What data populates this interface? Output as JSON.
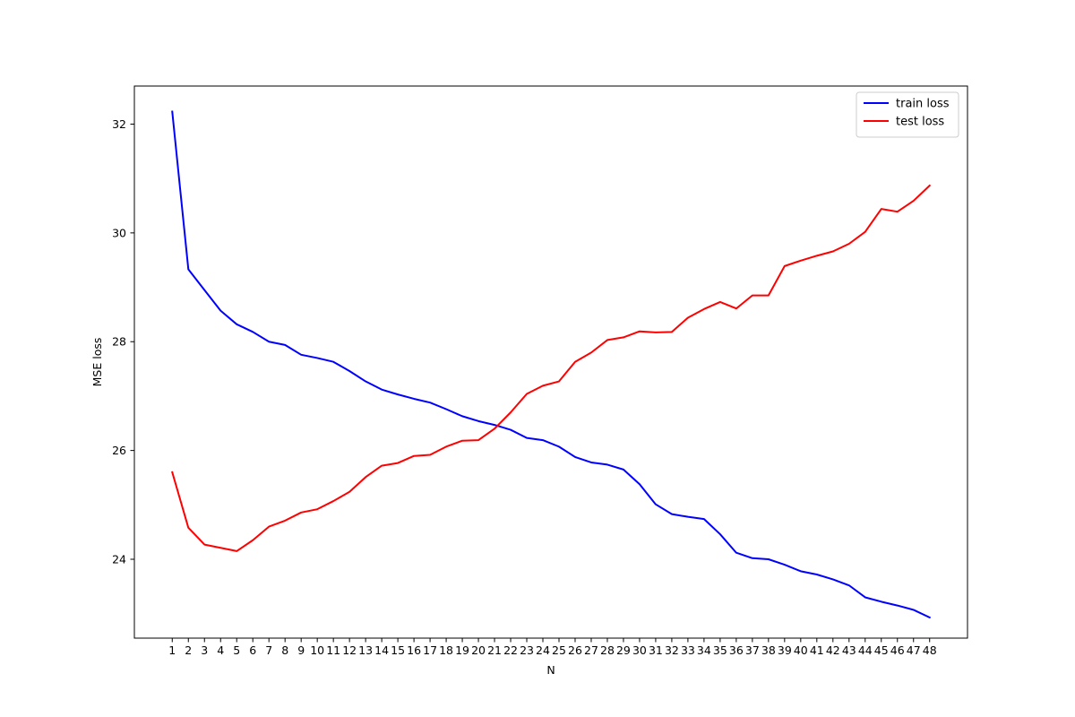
{
  "chart_data": {
    "type": "line",
    "title": "",
    "xlabel": "N",
    "ylabel": "MSE loss",
    "x": [
      1,
      2,
      3,
      4,
      5,
      6,
      7,
      8,
      9,
      10,
      11,
      12,
      13,
      14,
      15,
      16,
      17,
      18,
      19,
      20,
      21,
      22,
      23,
      24,
      25,
      26,
      27,
      28,
      29,
      30,
      31,
      32,
      33,
      34,
      35,
      36,
      37,
      38,
      39,
      40,
      41,
      42,
      43,
      44,
      45,
      46,
      47,
      48
    ],
    "xlim": [
      -1.35,
      50.35
    ],
    "ylim": [
      22.55,
      32.7
    ],
    "yticks": [
      24,
      26,
      28,
      30,
      32
    ],
    "grid": false,
    "legend_position": "top-right",
    "series": [
      {
        "name": "train loss",
        "color": "#0000ff",
        "values": [
          32.23,
          29.33,
          28.95,
          28.57,
          28.32,
          28.18,
          28.0,
          27.94,
          27.76,
          27.7,
          27.63,
          27.46,
          27.27,
          27.12,
          27.03,
          26.95,
          26.88,
          26.76,
          26.63,
          26.54,
          26.47,
          26.38,
          26.23,
          26.19,
          26.07,
          25.88,
          25.78,
          25.74,
          25.65,
          25.38,
          25.01,
          24.83,
          24.78,
          24.74,
          24.46,
          24.12,
          24.02,
          24.0,
          23.9,
          23.78,
          23.72,
          23.63,
          23.52,
          23.3,
          23.22,
          23.15,
          23.07,
          22.93
        ]
      },
      {
        "name": "test loss",
        "color": "#ff0000",
        "values": [
          25.6,
          24.58,
          24.27,
          24.21,
          24.15,
          24.35,
          24.6,
          24.71,
          24.86,
          24.92,
          25.07,
          25.24,
          25.51,
          25.72,
          25.77,
          25.9,
          25.92,
          26.07,
          26.18,
          26.19,
          26.4,
          26.7,
          27.04,
          27.19,
          27.27,
          27.63,
          27.8,
          28.03,
          28.08,
          28.19,
          28.17,
          28.18,
          28.44,
          28.6,
          28.73,
          28.61,
          28.85,
          28.85,
          29.39,
          29.49,
          29.58,
          29.66,
          29.8,
          30.02,
          30.44,
          30.39,
          30.59,
          30.87
        ]
      }
    ]
  }
}
